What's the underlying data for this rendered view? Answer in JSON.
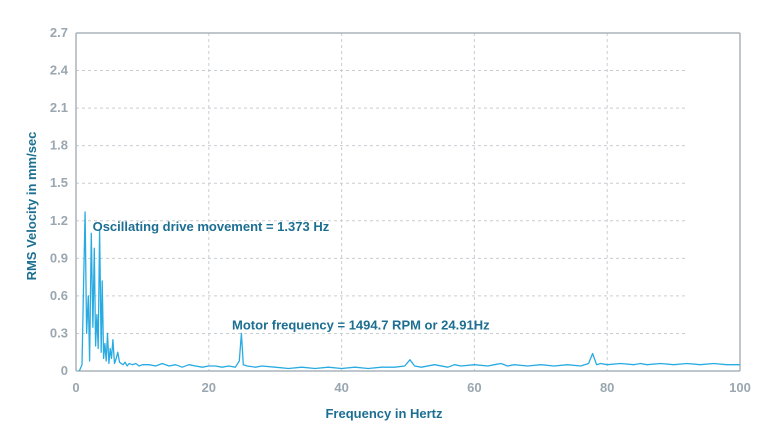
{
  "chart_data": {
    "type": "line",
    "title": "",
    "xlabel": "Frequency in Hertz",
    "ylabel": "RMS Velocity in mm/sec",
    "xlim": [
      0,
      100
    ],
    "ylim": [
      0,
      2.7
    ],
    "x_ticks": [
      "0",
      "20",
      "40",
      "60",
      "80",
      "100"
    ],
    "y_ticks": [
      "0",
      "0.3",
      "0.6",
      "0.9",
      "1.2",
      "1.5",
      "1.8",
      "2.1",
      "2.4",
      "2.7"
    ],
    "grid": true,
    "line_color": "#29abe2",
    "text_color": "#1c6f92",
    "tick_color": "#9aa7b0",
    "annotations": [
      {
        "text": "Oscillating drive movement = 1.373 Hz",
        "x": 2.5,
        "y": 1.12
      },
      {
        "text": "Motor frequency = 1494.7 RPM or 24.91Hz",
        "x": 23.5,
        "y": 0.33
      }
    ],
    "series": [
      {
        "x": [
          0.5,
          0.9,
          1.15,
          1.373,
          1.6,
          1.85,
          2.05,
          2.3,
          2.55,
          2.75,
          2.95,
          3.15,
          3.35,
          3.55,
          3.8,
          3.95,
          4.15,
          4.35,
          4.55,
          4.75,
          4.95,
          5.15,
          5.35,
          5.55,
          5.8,
          6.05,
          6.3,
          6.55,
          6.8,
          7.1,
          7.4,
          7.7,
          8.0,
          8.5,
          9.0,
          9.5,
          10,
          11,
          12,
          13,
          14,
          15,
          16,
          17,
          18,
          19,
          20,
          21,
          22,
          23,
          24,
          24.6,
          24.91,
          25.2,
          25.8,
          27,
          28,
          30,
          32,
          34,
          36,
          38,
          40,
          42,
          44,
          46,
          48,
          49.5,
          50.3,
          51,
          52,
          54,
          56,
          57,
          58,
          60,
          62,
          63,
          64,
          65,
          66,
          68,
          70,
          72,
          74,
          76,
          77.2,
          77.8,
          78.4,
          79,
          80,
          82,
          84,
          85,
          86,
          88,
          90,
          92,
          94,
          96,
          98,
          100
        ],
        "y": [
          0.0,
          0.05,
          0.7,
          1.27,
          0.3,
          0.6,
          0.08,
          1.1,
          0.35,
          0.98,
          0.2,
          0.45,
          0.18,
          1.13,
          0.15,
          0.72,
          0.1,
          0.22,
          0.08,
          0.3,
          0.06,
          0.18,
          0.1,
          0.25,
          0.06,
          0.1,
          0.15,
          0.07,
          0.06,
          0.05,
          0.07,
          0.04,
          0.06,
          0.05,
          0.06,
          0.04,
          0.05,
          0.05,
          0.04,
          0.06,
          0.04,
          0.05,
          0.03,
          0.05,
          0.04,
          0.03,
          0.04,
          0.04,
          0.03,
          0.04,
          0.03,
          0.08,
          0.3,
          0.05,
          0.04,
          0.03,
          0.04,
          0.03,
          0.02,
          0.03,
          0.02,
          0.03,
          0.02,
          0.03,
          0.02,
          0.03,
          0.03,
          0.04,
          0.09,
          0.04,
          0.03,
          0.05,
          0.03,
          0.05,
          0.04,
          0.05,
          0.04,
          0.05,
          0.06,
          0.04,
          0.05,
          0.04,
          0.05,
          0.04,
          0.05,
          0.04,
          0.06,
          0.14,
          0.05,
          0.06,
          0.05,
          0.06,
          0.05,
          0.06,
          0.05,
          0.06,
          0.05,
          0.06,
          0.05,
          0.06,
          0.05,
          0.05
        ]
      }
    ]
  }
}
